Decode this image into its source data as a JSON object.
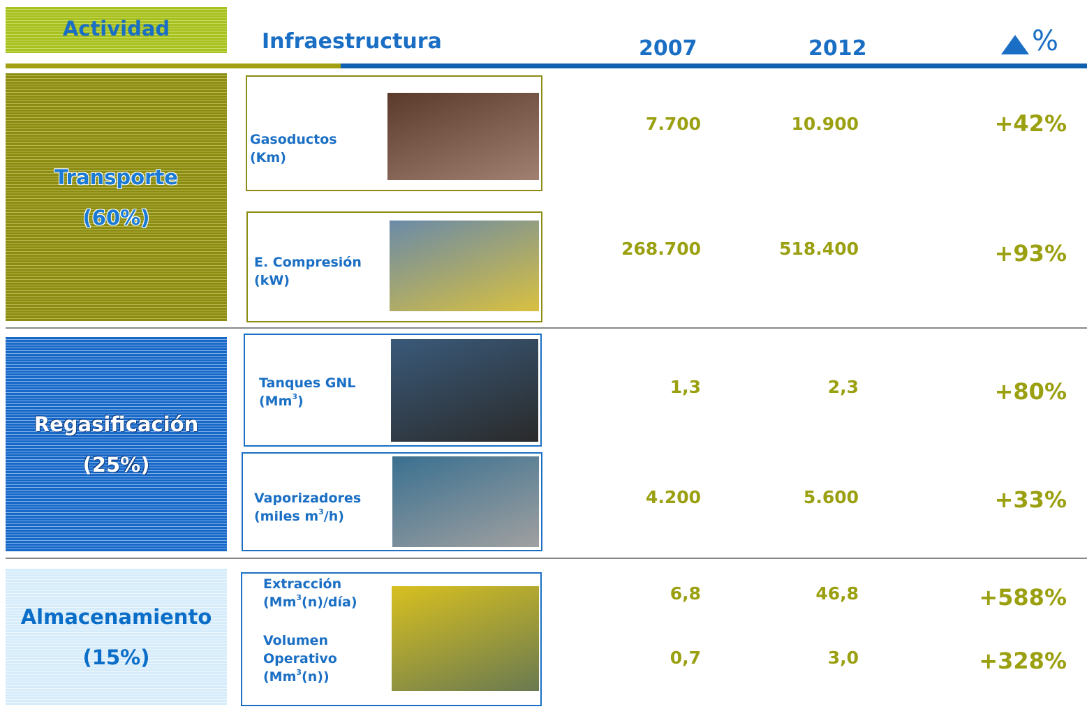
{
  "header": {
    "actividad": "Actividad",
    "infraestructura": "Infraestructura",
    "year_a": "2007",
    "year_b": "2012",
    "change": "%"
  },
  "groups": [
    {
      "name": "Transporte",
      "share": "(60%)",
      "items": [
        {
          "lines": [
            "Gasoductos"
          ],
          "unit": [
            "(Km)"
          ],
          "v2007": "7.700",
          "v2012": "10.900",
          "change": "+42%"
        },
        {
          "lines": [
            "E. Compresión"
          ],
          "unit": [
            "(kW)"
          ],
          "v2007": "268.700",
          "v2012": "518.400",
          "change": "+93%"
        }
      ]
    },
    {
      "name": "Regasificación",
      "share": "(25%)",
      "items": [
        {
          "lines": [
            "Tanques GNL"
          ],
          "unit": [
            "(Mm",
            "3",
            ")"
          ],
          "v2007": "1,3",
          "v2012": "2,3",
          "change": "+80%"
        },
        {
          "lines": [
            "Vaporizadores"
          ],
          "unit": [
            "(miles m",
            "3",
            "/h)"
          ],
          "v2007": "4.200",
          "v2012": "5.600",
          "change": "+33%"
        }
      ]
    },
    {
      "name": "Almacenamiento",
      "share": "(15%)",
      "items": [
        {
          "lines": [
            "Extracción"
          ],
          "unit": [
            "(Mm",
            "3",
            "(n)/día)"
          ],
          "v2007": "6,8",
          "v2012": "46,8",
          "change": "+588%"
        },
        {
          "lines": [
            "Volumen",
            "Operativo"
          ],
          "unit": [
            "(Mm",
            "3",
            "(n))"
          ],
          "v2007": "0,7",
          "v2012": "3,0",
          "change": "+328%"
        }
      ]
    }
  ]
}
